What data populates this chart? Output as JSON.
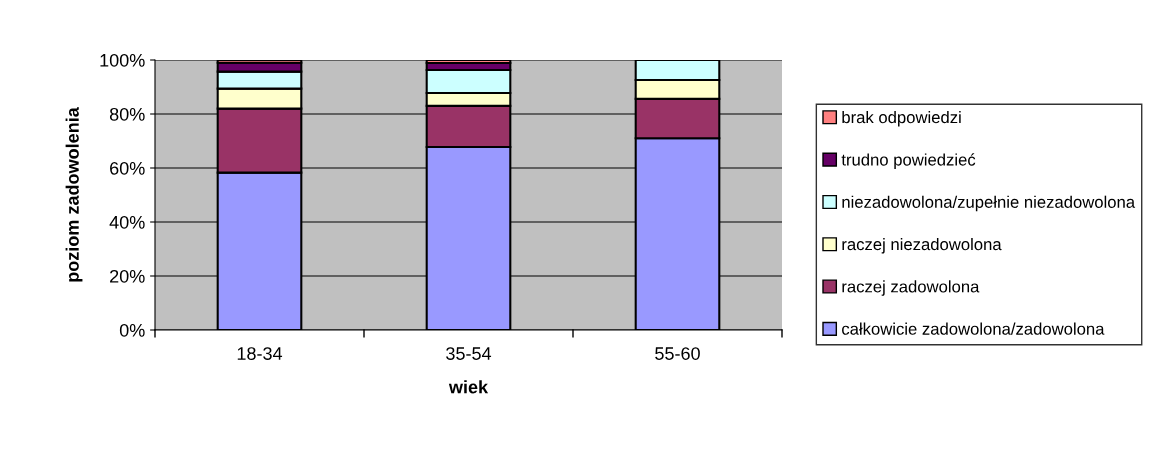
{
  "chart_data": {
    "type": "bar",
    "stacked": true,
    "xlabel": "wiek",
    "ylabel": "poziom zadowolenia",
    "categories": [
      "18-34",
      "35-54",
      "55-60"
    ],
    "series": [
      {
        "name": "całkowicie zadowolona/zadowolona",
        "color": "#9999ff",
        "values": [
          58.3,
          67.8,
          71.0
        ]
      },
      {
        "name": "raczej zadowolona",
        "color": "#993366",
        "values": [
          23.7,
          15.2,
          14.6
        ]
      },
      {
        "name": "raczej niezadowolona",
        "color": "#ffffcc",
        "values": [
          7.4,
          4.8,
          7.0
        ]
      },
      {
        "name": "niezadowolona/zupełnie niezadowolona",
        "color": "#ccffff",
        "values": [
          6.3,
          8.5,
          7.4
        ]
      },
      {
        "name": "trudno powiedzieć",
        "color": "#660066",
        "values": [
          3.3,
          2.6,
          null
        ]
      },
      {
        "name": "brak odpowiedzi",
        "color": "#ff8080",
        "values": [
          1.0,
          1.1,
          null
        ]
      }
    ],
    "ylim": [
      0,
      100
    ],
    "yticks": [
      {
        "value": 0,
        "label": "0%"
      },
      {
        "value": 20,
        "label": "20%"
      },
      {
        "value": 40,
        "label": "40%"
      },
      {
        "value": 60,
        "label": "60%"
      },
      {
        "value": 80,
        "label": "80%"
      },
      {
        "value": 100,
        "label": "100%"
      }
    ],
    "grid": "y",
    "legend": "right"
  }
}
